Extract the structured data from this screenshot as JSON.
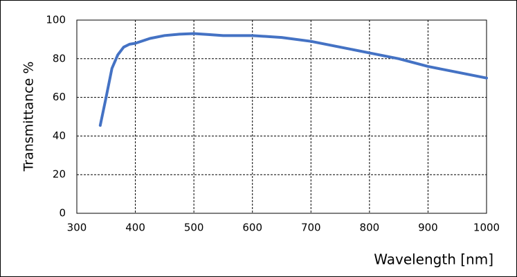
{
  "chart_data": {
    "type": "line",
    "x_label": "Wavelength [nm]",
    "y_label": "Transmittance %",
    "x": [
      340,
      350,
      360,
      370,
      380,
      390,
      400,
      425,
      450,
      475,
      500,
      525,
      550,
      575,
      600,
      650,
      700,
      750,
      800,
      850,
      900,
      950,
      1000
    ],
    "series": [
      {
        "color": "#4472c4",
        "values": [
          45.5,
          60,
          75,
          82,
          86,
          87.5,
          88,
          90.5,
          92,
          92.7,
          93,
          92.5,
          92,
          92,
          92,
          91,
          89,
          86,
          83,
          80,
          76,
          73,
          70
        ]
      }
    ],
    "xlim": [
      300,
      1000
    ],
    "xticks": [
      300,
      400,
      500,
      600,
      700,
      800,
      900,
      1000
    ],
    "ylim": [
      0,
      100
    ],
    "yticks": [
      0,
      20,
      40,
      60,
      80,
      100
    ],
    "grid": true
  }
}
